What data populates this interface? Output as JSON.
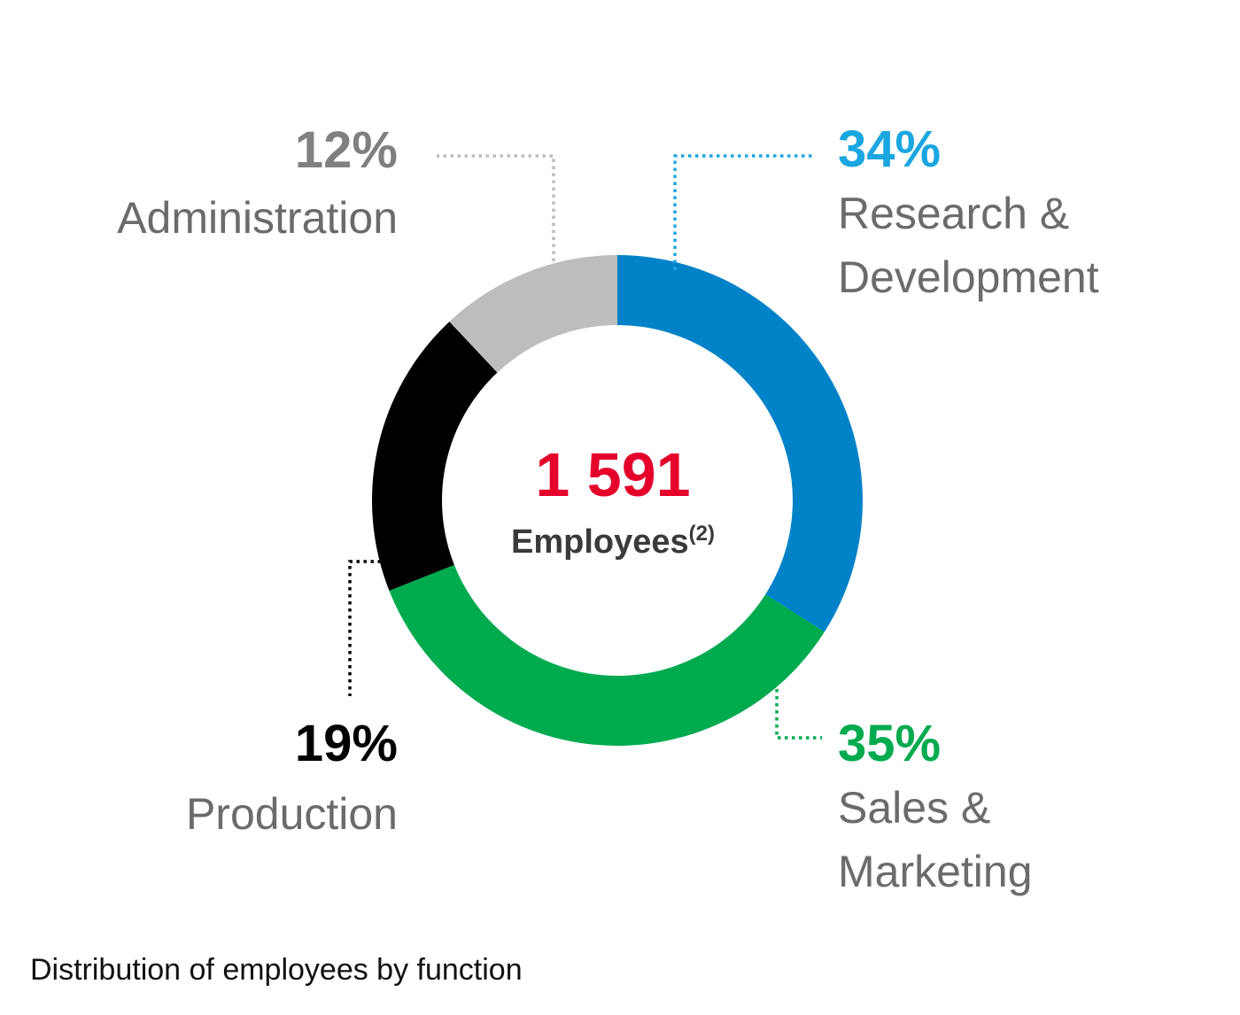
{
  "chart_data": {
    "type": "pie",
    "style": "donut",
    "total_value": "1 591",
    "total_label": "Employees",
    "total_footnote": "(2)",
    "slices": [
      {
        "name": "Research & Development",
        "lines": [
          "Research &",
          "Development"
        ],
        "value": 34,
        "value_label": "34%",
        "color": "#0082c8",
        "label_color": "#1aa6e0"
      },
      {
        "name": "Sales & Marketing",
        "lines": [
          "Sales &",
          "Marketing"
        ],
        "value": 35,
        "value_label": "35%",
        "color": "#00aa4f",
        "label_color": "#00aa4f"
      },
      {
        "name": "Production",
        "lines": [
          "Production"
        ],
        "value": 19,
        "value_label": "19%",
        "color": "#000000",
        "label_color": "#000000"
      },
      {
        "name": "Administration",
        "lines": [
          "Administration"
        ],
        "value": 12,
        "value_label": "12%",
        "color": "#bdbdbd",
        "label_color": "#808080"
      }
    ],
    "center_value_color": "#e4002b",
    "center_label_color": "#3a3a3a"
  },
  "caption": "Distribution of employees by function"
}
